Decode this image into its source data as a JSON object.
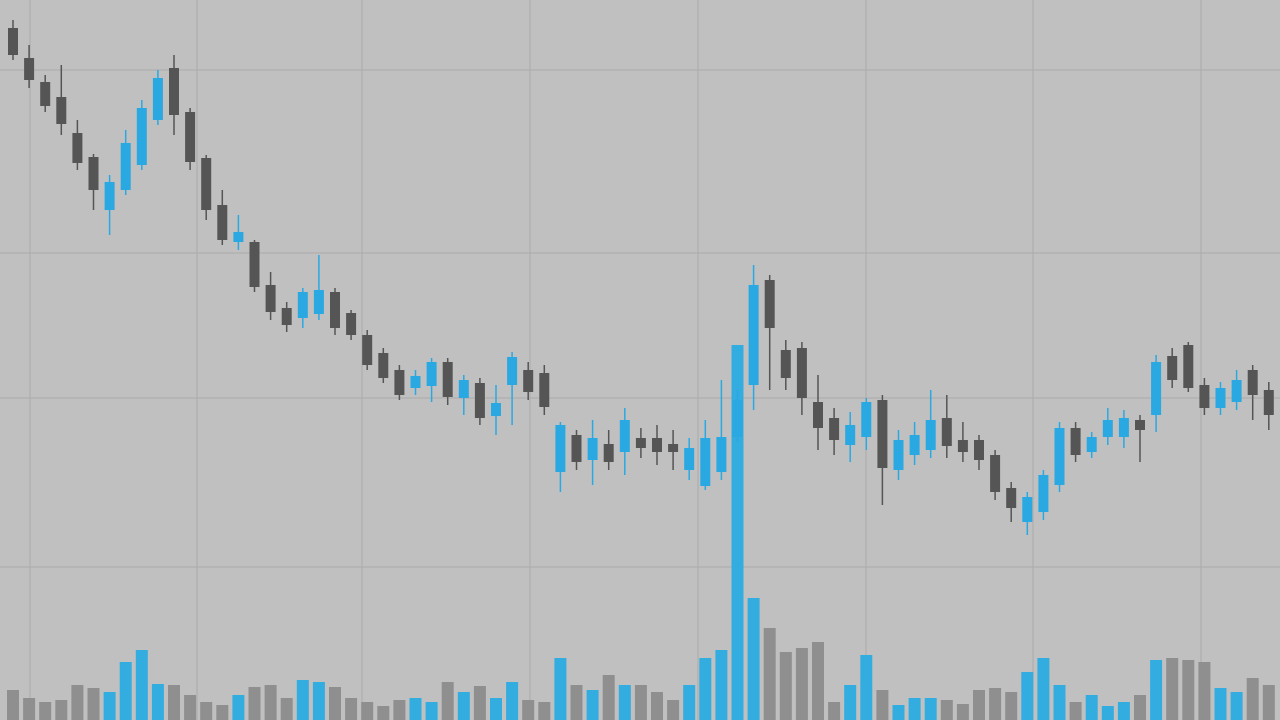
{
  "chart_data": {
    "type": "candlestick",
    "categories": [
      null,
      null,
      null,
      null,
      null,
      null,
      null,
      null,
      null,
      null,
      null,
      null,
      null,
      null,
      null,
      null,
      null,
      null,
      null,
      null,
      null,
      null,
      null,
      null,
      null,
      null,
      null,
      null,
      null,
      null,
      null,
      null,
      null,
      null,
      null,
      null,
      null,
      null,
      null,
      null,
      null,
      null,
      null,
      null,
      null,
      null,
      null,
      null,
      null,
      null,
      null,
      null,
      null,
      null,
      null,
      null,
      null,
      null,
      null,
      null,
      null,
      null,
      null,
      null,
      null,
      null,
      null,
      null,
      null,
      null,
      null,
      null,
      null,
      null,
      null,
      null,
      null,
      null,
      null
    ],
    "open": [
      692,
      662,
      638,
      623,
      587,
      563,
      510,
      530,
      555,
      600,
      652,
      608,
      562,
      515,
      478,
      478,
      435,
      412,
      402,
      406,
      428,
      407,
      385,
      367,
      350,
      332,
      334,
      358,
      322,
      337,
      304,
      335,
      350,
      347,
      248,
      285,
      260,
      276,
      268,
      282,
      282,
      276,
      250,
      234,
      248,
      283,
      335,
      440,
      370,
      372,
      318,
      302,
      275,
      283,
      320,
      250,
      265,
      270,
      302,
      280,
      280,
      265,
      232,
      198,
      208,
      235,
      292,
      268,
      283,
      283,
      300,
      305,
      364,
      375,
      335,
      312,
      318,
      350,
      330
    ],
    "high": [
      700,
      675,
      645,
      655,
      600,
      566,
      545,
      590,
      620,
      650,
      665,
      612,
      565,
      530,
      505,
      480,
      448,
      418,
      432,
      465,
      432,
      410,
      390,
      372,
      355,
      350,
      362,
      362,
      345,
      342,
      335,
      368,
      358,
      355,
      298,
      290,
      300,
      290,
      312,
      292,
      295,
      290,
      282,
      300,
      340,
      330,
      455,
      445,
      380,
      378,
      345,
      312,
      308,
      322,
      325,
      290,
      298,
      330,
      325,
      298,
      285,
      270,
      238,
      228,
      250,
      298,
      298,
      288,
      312,
      310,
      305,
      365,
      372,
      378,
      342,
      338,
      350,
      355,
      338
    ],
    "low": [
      660,
      632,
      608,
      585,
      550,
      510,
      485,
      525,
      550,
      595,
      585,
      550,
      500,
      475,
      470,
      428,
      400,
      388,
      392,
      400,
      385,
      380,
      350,
      337,
      320,
      325,
      318,
      315,
      305,
      295,
      285,
      295,
      320,
      305,
      228,
      250,
      235,
      250,
      245,
      262,
      255,
      250,
      240,
      230,
      240,
      278,
      310,
      330,
      330,
      305,
      270,
      265,
      258,
      270,
      215,
      240,
      255,
      262,
      262,
      258,
      250,
      220,
      198,
      185,
      200,
      228,
      258,
      262,
      275,
      272,
      258,
      288,
      332,
      328,
      305,
      305,
      310,
      300,
      290
    ],
    "close": [
      665,
      640,
      614,
      596,
      557,
      530,
      538,
      577,
      612,
      642,
      605,
      558,
      510,
      480,
      488,
      433,
      408,
      395,
      428,
      430,
      392,
      385,
      355,
      342,
      325,
      344,
      358,
      323,
      340,
      302,
      317,
      363,
      328,
      313,
      295,
      258,
      282,
      258,
      300,
      272,
      268,
      268,
      272,
      282,
      283,
      320,
      435,
      392,
      342,
      322,
      292,
      280,
      295,
      318,
      252,
      280,
      285,
      300,
      274,
      268,
      260,
      228,
      212,
      223,
      245,
      292,
      265,
      283,
      300,
      302,
      290,
      358,
      340,
      332,
      312,
      332,
      340,
      325,
      305
    ],
    "volume": [
      30,
      22,
      18,
      20,
      35,
      32,
      28,
      58,
      70,
      36,
      35,
      25,
      18,
      15,
      25,
      33,
      35,
      22,
      40,
      38,
      33,
      22,
      18,
      14,
      20,
      22,
      18,
      38,
      28,
      34,
      22,
      38,
      20,
      18,
      62,
      35,
      30,
      45,
      35,
      35,
      28,
      20,
      35,
      62,
      70,
      375,
      122,
      92,
      68,
      72,
      78,
      18,
      35,
      65,
      30,
      15,
      22,
      22,
      20,
      16,
      30,
      32,
      28,
      48,
      62,
      35,
      18,
      25,
      14,
      18,
      25,
      60,
      62,
      60,
      58,
      32,
      28,
      42,
      35
    ],
    "ylim": [
      0,
      720
    ],
    "yticks": [
      650,
      467,
      322,
      153
    ],
    "volume_lim": [
      0,
      720
    ],
    "grid": true,
    "up_color": "#2aa8e2",
    "down_color": "#555555",
    "volume_up_color": "#33ace0",
    "volume_down_color": "#8f8f8f"
  }
}
